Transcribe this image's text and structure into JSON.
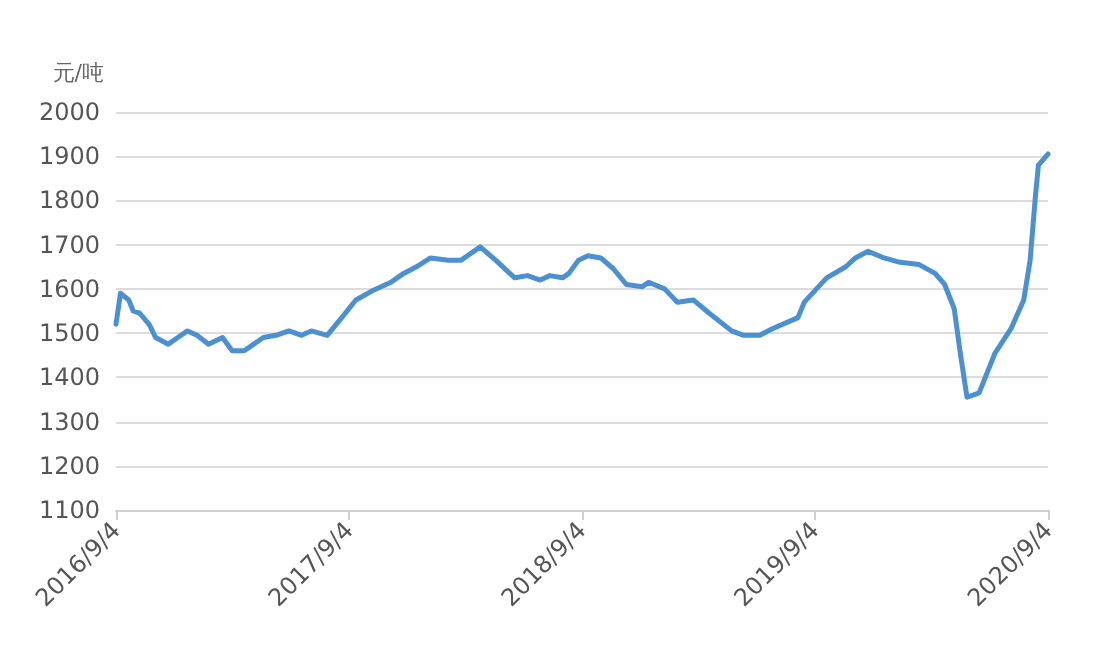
{
  "chart_data": {
    "type": "line",
    "ylabel": "元/吨",
    "color": "#4a90d2",
    "marker": "none",
    "line_style": "solid",
    "grid": "y",
    "x": [
      "2016-09-04",
      "2016-09-11",
      "2016-09-24",
      "2016-10-01",
      "2016-10-11",
      "2016-10-26",
      "2016-11-05",
      "2016-11-25",
      "2016-12-10",
      "2016-12-25",
      "2017-01-09",
      "2017-01-27",
      "2017-02-18",
      "2017-03-05",
      "2017-03-24",
      "2017-04-08",
      "2017-04-23",
      "2017-05-13",
      "2017-06-02",
      "2017-06-22",
      "2017-07-07",
      "2017-08-01",
      "2017-08-21",
      "2017-09-15",
      "2017-10-10",
      "2017-11-09",
      "2017-11-29",
      "2017-12-19",
      "2018-01-10",
      "2018-02-07",
      "2018-02-27",
      "2018-03-29",
      "2018-04-22",
      "2018-05-22",
      "2018-06-11",
      "2018-07-01",
      "2018-07-16",
      "2018-08-05",
      "2018-08-15",
      "2018-08-30",
      "2018-09-14",
      "2018-10-04",
      "2018-10-24",
      "2018-11-13",
      "2018-12-08",
      "2018-12-18",
      "2019-01-12",
      "2019-02-01",
      "2019-02-26",
      "2019-03-23",
      "2019-04-27",
      "2019-05-16",
      "2019-06-10",
      "2019-06-30",
      "2019-08-09",
      "2019-08-19",
      "2019-09-23",
      "2019-10-23",
      "2019-11-07",
      "2019-11-27",
      "2019-12-22",
      "2020-01-16",
      "2020-02-15",
      "2020-03-11",
      "2020-03-26",
      "2020-04-10",
      "2020-04-20",
      "2020-04-30",
      "2020-05-19",
      "2020-06-13",
      "2020-07-08",
      "2020-07-28",
      "2020-08-07",
      "2020-08-15",
      "2020-08-20",
      "2020-09-04"
    ],
    "values": [
      1520,
      1590,
      1575,
      1550,
      1545,
      1520,
      1490,
      1475,
      1490,
      1505,
      1495,
      1475,
      1490,
      1460,
      1460,
      1475,
      1490,
      1495,
      1505,
      1495,
      1505,
      1495,
      1530,
      1575,
      1595,
      1615,
      1635,
      1650,
      1670,
      1665,
      1665,
      1695,
      1665,
      1625,
      1630,
      1620,
      1630,
      1625,
      1635,
      1665,
      1675,
      1670,
      1645,
      1610,
      1605,
      1615,
      1600,
      1570,
      1575,
      1545,
      1505,
      1495,
      1495,
      1510,
      1535,
      1570,
      1625,
      1650,
      1670,
      1685,
      1670,
      1660,
      1655,
      1635,
      1610,
      1555,
      1450,
      1355,
      1365,
      1455,
      1510,
      1575,
      1665,
      1805,
      1880,
      1905
    ],
    "xlim": [
      "2016-09-04",
      "2020-09-04"
    ],
    "xticks": [
      {
        "value": "2016-09-04",
        "label": "2016/9/4"
      },
      {
        "value": "2017-09-04",
        "label": "2017/9/4"
      },
      {
        "value": "2018-09-04",
        "label": "2018/9/4"
      },
      {
        "value": "2019-09-04",
        "label": "2019/9/4"
      },
      {
        "value": "2020-09-04",
        "label": "2020/9/4"
      }
    ],
    "ylim": [
      1100,
      2000
    ],
    "yticks": [
      1100,
      1200,
      1300,
      1400,
      1500,
      1600,
      1700,
      1800,
      1900,
      2000
    ]
  }
}
